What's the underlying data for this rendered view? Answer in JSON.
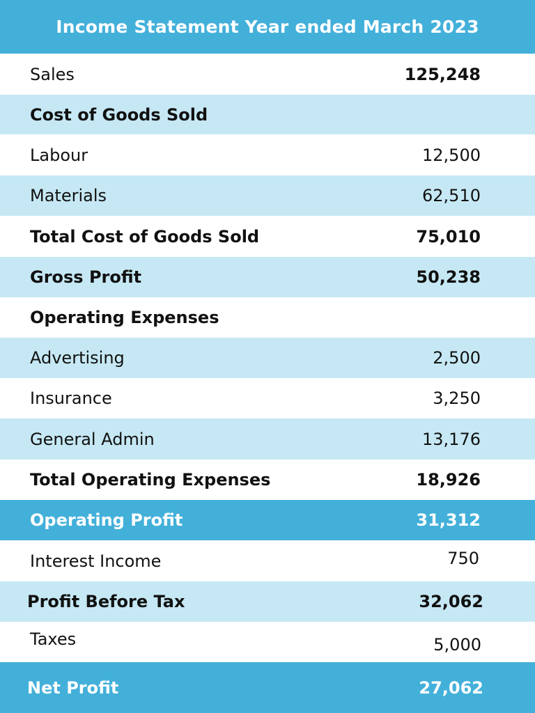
{
  "colors": {
    "header_bg": "#43b0da",
    "emphasis_bg": "#43b0da",
    "light_bg": "#c6e8f4",
    "white_bg": "#ffffff"
  },
  "title": "Income Statement Year ended March 2023",
  "rows": [
    {
      "label": "Sales",
      "value": "125,248",
      "style": "bold-value",
      "bg": "white"
    },
    {
      "label": "Cost of Goods Sold",
      "value": "",
      "style": "bold",
      "bg": "light"
    },
    {
      "label": "Labour",
      "value": "12,500",
      "style": "normal",
      "bg": "white"
    },
    {
      "label": "Materials",
      "value": "62,510",
      "style": "normal",
      "bg": "light"
    },
    {
      "label": "Total Cost of Goods Sold",
      "value": "75,010",
      "style": "bold",
      "bg": "white"
    },
    {
      "label": "Gross Profit",
      "value": "50,238",
      "style": "bold",
      "bg": "light"
    },
    {
      "label": "Operating Expenses",
      "value": "",
      "style": "bold",
      "bg": "white"
    },
    {
      "label": "Advertising",
      "value": "2,500",
      "style": "normal",
      "bg": "light"
    },
    {
      "label": "Insurance",
      "value": "3,250",
      "style": "normal",
      "bg": "white"
    },
    {
      "label": "General Admin",
      "value": "13,176",
      "style": "normal",
      "bg": "light"
    },
    {
      "label": "Total Operating Expenses",
      "value": "18,926",
      "style": "bold",
      "bg": "white"
    },
    {
      "label": "Operating Profit",
      "value": "31,312",
      "style": "emphasis",
      "bg": "emphasis"
    },
    {
      "label": "Interest Income",
      "value": "750",
      "style": "normal",
      "bg": "white"
    },
    {
      "label": "Profit Before Tax",
      "value": "32,062",
      "style": "bold",
      "bg": "light"
    },
    {
      "label": "Taxes",
      "value": "5,000",
      "style": "normal",
      "bg": "white"
    },
    {
      "label": "Net Profit",
      "value": "27,062",
      "style": "emphasis",
      "bg": "emphasis"
    }
  ]
}
